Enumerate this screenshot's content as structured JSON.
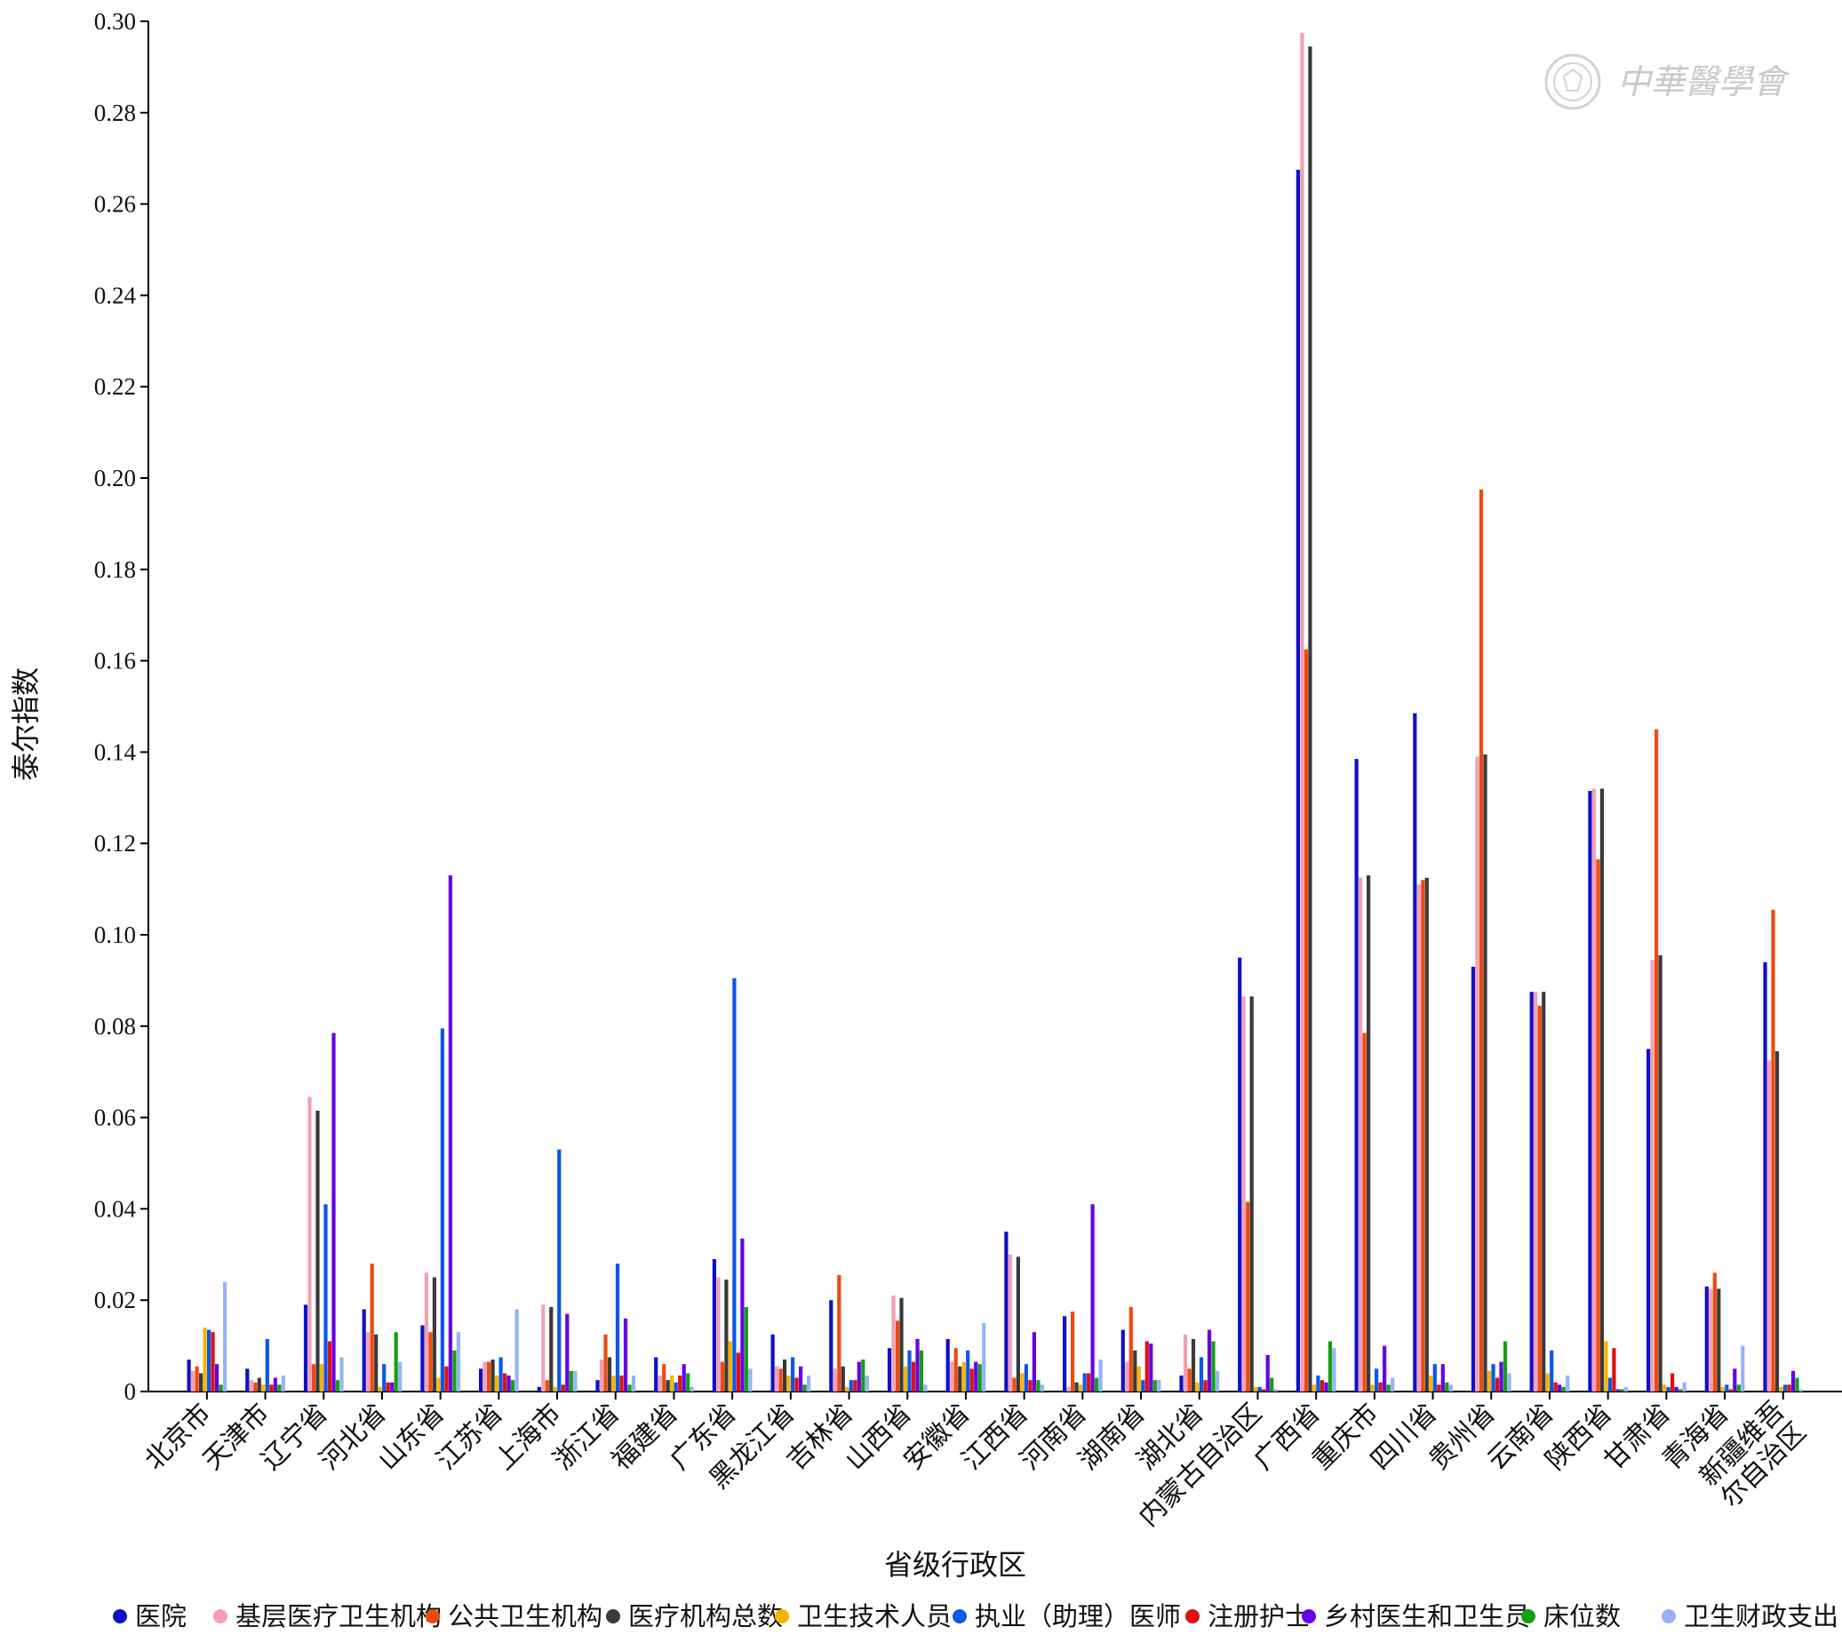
{
  "chart_data": {
    "type": "bar",
    "xlabel": "省级行政区",
    "ylabel": "泰尔指数",
    "ylim": [
      0,
      0.3
    ],
    "yticks": [
      "0",
      "0.02",
      "0.04",
      "0.06",
      "0.08",
      "0.10",
      "0.12",
      "0.14",
      "0.16",
      "0.18",
      "0.20",
      "0.22",
      "0.24",
      "0.26",
      "0.28",
      "0.30"
    ],
    "grid": false,
    "legend_position": "bottom",
    "categories": [
      "北京市",
      "天津市",
      "辽宁省",
      "河北省",
      "山东省",
      "江苏省",
      "上海市",
      "浙江省",
      "福建省",
      "广东省",
      "黑龙江省",
      "吉林省",
      "山西省",
      "安徽省",
      "江西省",
      "河南省",
      "湖南省",
      "湖北省",
      "内蒙古自治区",
      "广西省",
      "重庆市",
      "四川省",
      "贵州省",
      "云南省",
      "陕西省",
      "甘肃省",
      "青海省",
      "新疆维吾尔自治区"
    ],
    "series": [
      {
        "name": "医院",
        "color": "#1010c8",
        "values": [
          0.007,
          0.005,
          0.019,
          0.018,
          0.0145,
          0.005,
          0.001,
          0.0025,
          0.0075,
          0.029,
          0.0125,
          0.02,
          0.0095,
          0.0115,
          0.035,
          0.0165,
          0.0135,
          0.0035,
          0.095,
          0.2675,
          0.1385,
          0.1485,
          0.093,
          0.0875,
          0.1315,
          0.075,
          0.023,
          0.094
        ]
      },
      {
        "name": "基层医疗卫生机构",
        "color": "#f4a0b4",
        "values": [
          0.0045,
          0.0025,
          0.0645,
          0.013,
          0.026,
          0.0065,
          0.019,
          0.007,
          0.0035,
          0.025,
          0.0055,
          0.005,
          0.021,
          0.0065,
          0.03,
          0.001,
          0.0065,
          0.0125,
          0.0865,
          0.2975,
          0.1125,
          0.111,
          0.139,
          0.0875,
          0.132,
          0.0945,
          0.0225,
          0.0725
        ]
      },
      {
        "name": "公共卫生机构",
        "color": "#ee4a10",
        "values": [
          0.0055,
          0.002,
          0.006,
          0.028,
          0.013,
          0.0065,
          0.0025,
          0.0125,
          0.006,
          0.0065,
          0.005,
          0.0255,
          0.0155,
          0.0095,
          0.003,
          0.0175,
          0.0185,
          0.005,
          0.0415,
          0.1625,
          0.0785,
          0.112,
          0.1975,
          0.0845,
          0.1165,
          0.145,
          0.026,
          0.1055
        ]
      },
      {
        "name": "医疗机构总数",
        "color": "#3a3a3a",
        "values": [
          0.004,
          0.003,
          0.0615,
          0.0125,
          0.025,
          0.007,
          0.0185,
          0.0075,
          0.0025,
          0.0245,
          0.007,
          0.0055,
          0.0205,
          0.0055,
          0.0295,
          0.002,
          0.009,
          0.0115,
          0.0865,
          0.2945,
          0.113,
          0.1125,
          0.1395,
          0.0875,
          0.132,
          0.0955,
          0.0225,
          0.0745
        ]
      },
      {
        "name": "卫生技术人员",
        "color": "#f5b400",
        "values": [
          0.014,
          0.0015,
          0.006,
          0.001,
          0.003,
          0.0035,
          0.001,
          0.0035,
          0.0035,
          0.011,
          0.0035,
          0.001,
          0.0055,
          0.0065,
          0.004,
          0.0015,
          0.0055,
          0.002,
          0.001,
          0.0015,
          0.0015,
          0.0035,
          0.0045,
          0.004,
          0.011,
          0.0015,
          0.001,
          0.001
        ]
      },
      {
        "name": "执业（助理）医师",
        "color": "#0a56ee",
        "values": [
          0.0135,
          0.0115,
          0.041,
          0.006,
          0.0795,
          0.0075,
          0.053,
          0.028,
          0.002,
          0.0905,
          0.0075,
          0.0025,
          0.009,
          0.009,
          0.006,
          0.004,
          0.0025,
          0.0075,
          0.001,
          0.0035,
          0.005,
          0.006,
          0.006,
          0.009,
          0.003,
          0.001,
          0.0015,
          0.0015
        ]
      },
      {
        "name": "注册护士",
        "color": "#e01010",
        "values": [
          0.013,
          0.0015,
          0.011,
          0.002,
          0.0055,
          0.004,
          0.0015,
          0.0035,
          0.0035,
          0.0085,
          0.003,
          0.0025,
          0.0065,
          0.005,
          0.0025,
          0.004,
          0.011,
          0.0025,
          0.0005,
          0.0025,
          0.002,
          0.0015,
          0.003,
          0.002,
          0.0095,
          0.004,
          0.0005,
          0.0015
        ]
      },
      {
        "name": "乡村医生和卫生员",
        "color": "#6600e6",
        "values": [
          0.006,
          0.003,
          0.0785,
          0.002,
          0.113,
          0.0035,
          0.017,
          0.016,
          0.006,
          0.0335,
          0.0055,
          0.0065,
          0.0115,
          0.0065,
          0.013,
          0.041,
          0.0105,
          0.0135,
          0.008,
          0.002,
          0.01,
          0.006,
          0.0065,
          0.0015,
          0.0005,
          0.001,
          0.005,
          0.0045
        ]
      },
      {
        "name": "床位数",
        "color": "#14a014",
        "values": [
          0.0015,
          0.0015,
          0.0025,
          0.013,
          0.009,
          0.0025,
          0.0045,
          0.0015,
          0.004,
          0.0185,
          0.0015,
          0.007,
          0.009,
          0.006,
          0.0025,
          0.003,
          0.0025,
          0.011,
          0.003,
          0.011,
          0.0015,
          0.002,
          0.011,
          0.001,
          0.0005,
          0.0005,
          0.0015,
          0.003
        ]
      },
      {
        "name": "卫生财政支出",
        "color": "#96b4f4",
        "values": [
          0.024,
          0.0035,
          0.0075,
          0.0065,
          0.013,
          0.018,
          0.0045,
          0.0035,
          0.001,
          0.005,
          0.0035,
          0.0035,
          0.0015,
          0.015,
          0.0015,
          0.007,
          0.0025,
          0.0045,
          0.0005,
          0.0095,
          0.003,
          0.0015,
          0.004,
          0.0035,
          0.001,
          0.002,
          0.01,
          0.0005
        ]
      }
    ]
  },
  "watermark": {
    "text": "中華醫學會",
    "icon": "seal-emblem-icon"
  }
}
